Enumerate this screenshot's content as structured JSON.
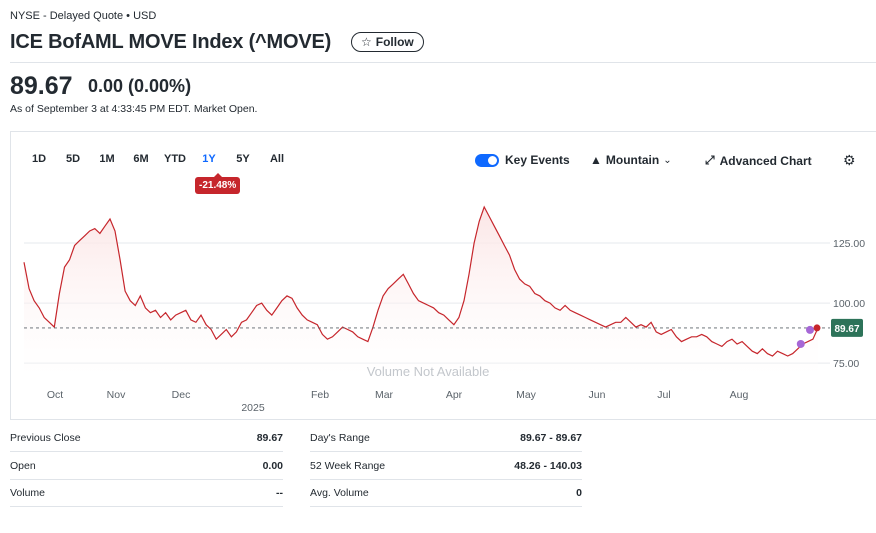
{
  "header": {
    "exchange": "NYSE - Delayed Quote • USD",
    "title": "ICE BofAML MOVE Index (^MOVE)",
    "follow_label": "Follow",
    "price": "89.67",
    "change": "0.00 (0.00%)",
    "as_of": "As of September 3 at 4:33:45 PM EDT. Market Open."
  },
  "toolbar": {
    "ranges": [
      "1D",
      "5D",
      "1M",
      "6M",
      "YTD",
      "1Y",
      "5Y",
      "All"
    ],
    "active_range": "1Y",
    "range_change": "-21.48%",
    "key_events_label": "Key Events",
    "key_events_on": true,
    "chart_type_label": "Mountain",
    "advanced_chart_label": "Advanced Chart"
  },
  "chart_data": {
    "type": "area",
    "x_tick_labels": [
      "Oct",
      "Nov",
      "Dec",
      "Feb",
      "Mar",
      "Apr",
      "May",
      "Jun",
      "Jul",
      "Aug"
    ],
    "x_year_label": "2025",
    "y_tick_labels": [
      "125.00",
      "100.00",
      "75.00"
    ],
    "ylim": [
      68,
      145
    ],
    "grid": true,
    "last_value_label": "89.67",
    "reference_line": 89.67,
    "overlay_text": "Volume Not Available",
    "colors": {
      "line": "#c6262c",
      "fill": "#fbe3e3",
      "price_tag": "#2d7359",
      "event_dot": "#a667d6"
    },
    "series": [
      {
        "values": [
          117,
          106,
          101,
          98,
          94,
          92,
          90,
          104,
          115,
          118,
          124,
          126,
          128,
          130,
          131,
          129,
          132,
          135,
          130,
          118,
          105,
          101,
          99,
          103,
          98,
          96,
          97,
          94,
          96,
          93,
          95,
          96,
          97,
          93,
          92,
          95,
          91,
          89,
          85,
          87,
          89,
          86,
          88,
          92,
          93,
          96,
          99,
          100,
          97,
          95,
          98,
          101,
          103,
          102,
          98,
          95,
          93,
          92,
          91,
          87,
          85,
          86,
          88,
          90,
          89,
          88,
          86,
          85,
          84,
          90,
          97,
          103,
          106,
          108,
          110,
          112,
          108,
          104,
          101,
          100,
          99,
          98,
          96,
          95,
          93,
          91,
          94,
          101,
          112,
          125,
          134,
          140,
          136,
          132,
          128,
          124,
          120,
          114,
          110,
          108,
          107,
          104,
          103,
          101,
          100,
          98,
          97,
          99,
          97,
          96,
          95,
          94,
          93,
          92,
          91,
          90,
          91,
          92,
          92,
          94,
          92,
          90,
          91,
          90,
          92,
          88,
          87,
          88,
          89,
          86,
          84,
          85,
          86,
          86,
          87,
          86,
          84,
          83,
          82,
          84,
          85,
          83,
          84,
          82,
          80,
          79,
          81,
          79,
          78,
          80,
          79,
          78,
          79,
          81,
          83,
          84,
          85,
          89.67
        ]
      }
    ]
  },
  "stats": {
    "left": [
      {
        "label": "Previous Close",
        "value": "89.67"
      },
      {
        "label": "Open",
        "value": "0.00"
      },
      {
        "label": "Volume",
        "value": "--"
      }
    ],
    "right": [
      {
        "label": "Day's Range",
        "value": "89.67 - 89.67"
      },
      {
        "label": "52 Week Range",
        "value": "48.26 - 140.03"
      },
      {
        "label": "Avg. Volume",
        "value": "0"
      }
    ]
  }
}
